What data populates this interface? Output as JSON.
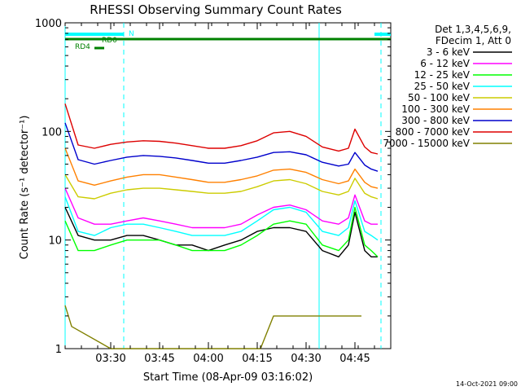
{
  "chart_data": {
    "type": "line",
    "title": "RHESSI Observing Summary Count Rates",
    "xlabel": "Start Time (08-Apr-09 03:16:02)",
    "ylabel": "Count Rate (s⁻¹ detector⁻¹)",
    "yscale": "log",
    "ylim": [
      1,
      1000
    ],
    "xlim": [
      "03:16",
      "04:56"
    ],
    "x_ticks": [
      "03:30",
      "03:45",
      "04:00",
      "04:15",
      "04:30",
      "04:45"
    ],
    "y_ticks": [
      "1",
      "10",
      "100",
      "1000"
    ],
    "timestamp": "14-Oct-2021 09:00",
    "legend": {
      "placement": "right",
      "header": [
        "Det 1,3,4,5,6,9,",
        "FDecim 1, Att 0"
      ]
    },
    "flags": [
      {
        "label": "N",
        "color": "#00ffff",
        "spans": [
          [
            "03:16",
            "03:34"
          ],
          [
            "04:51",
            "04:56"
          ]
        ]
      },
      {
        "label": "RD0",
        "color": "#008000",
        "spans": [
          [
            "03:16",
            "04:56"
          ]
        ]
      },
      {
        "label": "RD4",
        "color": "#008000",
        "spans": [
          [
            "03:25",
            "03:28"
          ]
        ]
      }
    ],
    "night_boundaries": [
      "03:16",
      "03:34",
      "04:34",
      "04:53"
    ],
    "series": [
      {
        "name": "3 - 6 keV",
        "color": "#000000",
        "x": [
          "03:16",
          "03:20",
          "03:25",
          "03:30",
          "03:35",
          "03:40",
          "03:45",
          "03:50",
          "03:55",
          "04:00",
          "04:05",
          "04:10",
          "04:15",
          "04:20",
          "04:25",
          "04:30",
          "04:35",
          "04:40",
          "04:43",
          "04:45",
          "04:48",
          "04:50",
          "04:52"
        ],
        "y": [
          20,
          11,
          10,
          10,
          11,
          11,
          10,
          9,
          9,
          8,
          9,
          10,
          12,
          13,
          13,
          12,
          8,
          7,
          9,
          18,
          8,
          7,
          7
        ]
      },
      {
        "name": "6 - 12 keV",
        "color": "#ff00ff",
        "x": [
          "03:16",
          "03:20",
          "03:25",
          "03:30",
          "03:35",
          "03:40",
          "03:45",
          "03:50",
          "03:55",
          "04:00",
          "04:05",
          "04:10",
          "04:15",
          "04:20",
          "04:25",
          "04:30",
          "04:35",
          "04:40",
          "04:43",
          "04:45",
          "04:48",
          "04:50",
          "04:52"
        ],
        "y": [
          30,
          16,
          14,
          14,
          15,
          16,
          15,
          14,
          13,
          13,
          13,
          14,
          17,
          20,
          21,
          19,
          15,
          14,
          16,
          26,
          15,
          14,
          14
        ]
      },
      {
        "name": "12 - 25 keV",
        "color": "#00ff00",
        "x": [
          "03:16",
          "03:20",
          "03:25",
          "03:30",
          "03:35",
          "03:40",
          "03:45",
          "03:50",
          "03:55",
          "04:00",
          "04:05",
          "04:10",
          "04:15",
          "04:20",
          "04:25",
          "04:30",
          "04:35",
          "04:40",
          "04:43",
          "04:45",
          "04:48",
          "04:50",
          "04:52"
        ],
        "y": [
          15,
          8,
          8,
          9,
          10,
          10,
          10,
          9,
          8,
          8,
          8,
          9,
          11,
          14,
          15,
          14,
          9,
          8,
          10,
          20,
          9,
          8,
          7
        ]
      },
      {
        "name": "25 - 50 keV",
        "color": "#00ffff",
        "x": [
          "03:16",
          "03:20",
          "03:25",
          "03:30",
          "03:35",
          "03:40",
          "03:45",
          "03:50",
          "03:55",
          "04:00",
          "04:05",
          "04:10",
          "04:15",
          "04:20",
          "04:25",
          "04:30",
          "04:35",
          "04:40",
          "04:43",
          "04:45",
          "04:48",
          "04:50",
          "04:52"
        ],
        "y": [
          25,
          12,
          11,
          13,
          14,
          14,
          13,
          12,
          11,
          11,
          11,
          12,
          15,
          19,
          20,
          18,
          12,
          11,
          13,
          23,
          12,
          11,
          10
        ]
      },
      {
        "name": "50 - 100 keV",
        "color": "#cccc00",
        "x": [
          "03:16",
          "03:20",
          "03:25",
          "03:30",
          "03:35",
          "03:40",
          "03:45",
          "03:50",
          "03:55",
          "04:00",
          "04:05",
          "04:10",
          "04:15",
          "04:20",
          "04:25",
          "04:30",
          "04:35",
          "04:40",
          "04:43",
          "04:45",
          "04:48",
          "04:50",
          "04:52"
        ],
        "y": [
          40,
          25,
          24,
          27,
          29,
          30,
          30,
          29,
          28,
          27,
          27,
          28,
          31,
          35,
          36,
          33,
          28,
          26,
          28,
          37,
          27,
          25,
          24
        ]
      },
      {
        "name": "100 - 300 keV",
        "color": "#ff8000",
        "x": [
          "03:16",
          "03:20",
          "03:25",
          "03:30",
          "03:35",
          "03:40",
          "03:45",
          "03:50",
          "03:55",
          "04:00",
          "04:05",
          "04:10",
          "04:15",
          "04:20",
          "04:25",
          "04:30",
          "04:35",
          "04:40",
          "04:43",
          "04:45",
          "04:48",
          "04:50",
          "04:52"
        ],
        "y": [
          70,
          35,
          32,
          35,
          38,
          40,
          40,
          38,
          36,
          34,
          34,
          36,
          39,
          44,
          45,
          42,
          36,
          33,
          35,
          45,
          34,
          31,
          30
        ]
      },
      {
        "name": "300 - 800 keV",
        "color": "#0000cc",
        "x": [
          "03:16",
          "03:20",
          "03:25",
          "03:30",
          "03:35",
          "03:40",
          "03:45",
          "03:50",
          "03:55",
          "04:00",
          "04:05",
          "04:10",
          "04:15",
          "04:20",
          "04:25",
          "04:30",
          "04:35",
          "04:40",
          "04:43",
          "04:45",
          "04:48",
          "04:50",
          "04:52"
        ],
        "y": [
          120,
          55,
          50,
          54,
          58,
          60,
          59,
          57,
          54,
          51,
          51,
          54,
          58,
          64,
          65,
          61,
          52,
          48,
          50,
          64,
          49,
          45,
          43
        ]
      },
      {
        "name": "800 - 7000 keV",
        "color": "#dd0000",
        "x": [
          "03:16",
          "03:20",
          "03:25",
          "03:30",
          "03:35",
          "03:40",
          "03:45",
          "03:50",
          "03:55",
          "04:00",
          "04:05",
          "04:10",
          "04:15",
          "04:20",
          "04:25",
          "04:30",
          "04:35",
          "04:40",
          "04:43",
          "04:45",
          "04:48",
          "04:50",
          "04:52"
        ],
        "y": [
          180,
          75,
          70,
          76,
          80,
          82,
          81,
          78,
          74,
          70,
          70,
          74,
          82,
          97,
          100,
          90,
          72,
          66,
          70,
          105,
          72,
          64,
          62
        ]
      },
      {
        "name": "7000 - 15000 keV",
        "color": "#808000",
        "x": [
          "03:16",
          "03:18",
          "03:30",
          "04:16",
          "04:20",
          "04:24",
          "04:28",
          "04:44",
          "04:47"
        ],
        "y": [
          2.5,
          1.6,
          1,
          1,
          2,
          2,
          2,
          2,
          2
        ]
      }
    ]
  }
}
